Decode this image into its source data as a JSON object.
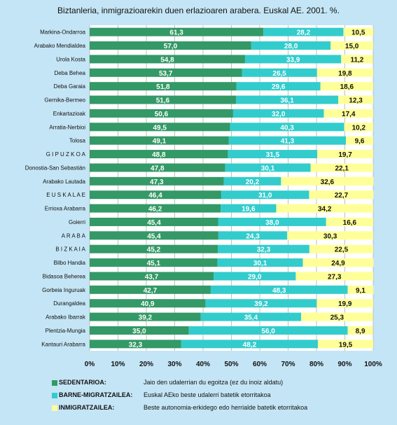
{
  "chart_data": {
    "type": "bar",
    "orientation": "horizontal",
    "stacked": true,
    "percent_stacked": true,
    "title": "Biztanleria, inmigrazioarekin duen erlazioaren arabera. Euskal AE. 2001. %.",
    "categories": [
      "Markina-Ondarroa",
      "Arabako Mendialdea",
      "Urola Kosta",
      "Deba Behea",
      "Deba Garaia",
      "Gernika-Bermeo",
      "Enkartazioak",
      "Arratia-Nerbioi",
      "Tolosa",
      "G I P U Z K O A",
      "Donostia-San Sebastián",
      "Arabako Lautada",
      "E U S K A L A E",
      "Errioxa Arabarra",
      "Goierri",
      "A R A B A",
      "B I Z K A I A",
      "Bilbo Handia",
      "Bidasoa Beherea",
      "Gorbeia Inguruak",
      "Durangaldea",
      "Arabako Ibarrak",
      "Plentzia-Mungia",
      "Kantauri Arabarra"
    ],
    "series": [
      {
        "name": "SEDENTARIOA:",
        "description": "Jaio den udalerrian du egoitza (ez du inoiz aldatu)",
        "color": "#339966",
        "label_color": "#ffffff",
        "values": [
          61.3,
          57.0,
          54.8,
          53.7,
          51.8,
          51.6,
          50.6,
          49.5,
          49.1,
          48.8,
          47.8,
          47.3,
          46.4,
          46.2,
          45.4,
          45.4,
          45.2,
          45.1,
          43.7,
          42.7,
          40.9,
          39.2,
          35.0,
          32.3
        ],
        "labels": [
          "61,3",
          "57,0",
          "54,8",
          "53,7",
          "51,8",
          "51,6",
          "50,6",
          "49,5",
          "49,1",
          "48,8",
          "47,8",
          "47,3",
          "46,4",
          "46,2",
          "45,4",
          "45,4",
          "45,2",
          "45,1",
          "43,7",
          "42,7",
          "40,9",
          "39,2",
          "35,0",
          "32,3"
        ]
      },
      {
        "name": "BARNE-MIGRATZAILEA:",
        "description": "Euskal AEko beste udalerri batetik etorritakoa",
        "color": "#33cccc",
        "label_color": "#ffffff",
        "values": [
          28.2,
          28.0,
          33.9,
          26.5,
          29.6,
          36.1,
          32.0,
          40.3,
          41.3,
          31.5,
          30.1,
          20.2,
          31.0,
          19.6,
          38.0,
          24.3,
          32.3,
          30.1,
          29.0,
          48.3,
          39.2,
          35.4,
          56.0,
          48.2
        ],
        "labels": [
          "28,2",
          "28,0",
          "33,9",
          "26,5",
          "29,6",
          "36,1",
          "32,0",
          "40,3",
          "41,3",
          "31,5",
          "30,1",
          "20,2",
          "31,0",
          "19,6",
          "38,0",
          "24,3",
          "32,3",
          "30,1",
          "29,0",
          "48,3",
          "39,2",
          "35,4",
          "56,0",
          "48,2"
        ]
      },
      {
        "name": "INMIGRATZAILEA:",
        "description": "Beste autonomia-erkidego edo herrialde batetik etorritakoa",
        "color": "#ffff99",
        "label_color": "#111111",
        "values": [
          10.5,
          15.0,
          11.2,
          19.8,
          18.6,
          12.3,
          17.4,
          10.2,
          9.6,
          19.7,
          22.1,
          32.6,
          22.7,
          34.2,
          16.6,
          30.3,
          22.5,
          24.9,
          27.3,
          9.1,
          19.9,
          25.3,
          8.9,
          19.5
        ],
        "labels": [
          "10,5",
          "15,0",
          "11,2",
          "19,8",
          "18,6",
          "12,3",
          "17,4",
          "10,2",
          "9,6",
          "19,7",
          "22,1",
          "32,6",
          "22,7",
          "34,2",
          "16,6",
          "30,3",
          "22,5",
          "24,9",
          "27,3",
          "9,1",
          "19,9",
          "25,3",
          "8,9",
          "19,5"
        ]
      }
    ],
    "x_ticks": [
      "0%",
      "10%",
      "20%",
      "30%",
      "40%",
      "50%",
      "60%",
      "70%",
      "80%",
      "90%",
      "100%"
    ],
    "xlim": [
      0,
      100
    ],
    "xlabel": "",
    "ylabel": "",
    "grid": true,
    "legend_placement": "bottom",
    "colors": {
      "background": "#c4e5f5",
      "plot_background": "#ffffff",
      "gridline": "#c0c0c0"
    }
  }
}
